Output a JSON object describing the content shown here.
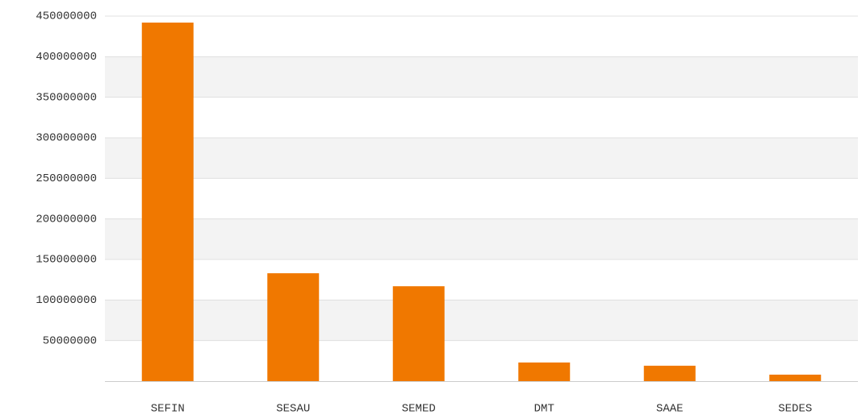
{
  "chart_data": {
    "type": "bar",
    "categories": [
      "SEFIN",
      "SESAU",
      "SEMED",
      "DMT",
      "SAAE",
      "SEDES"
    ],
    "values": [
      442000000,
      133000000,
      117000000,
      23000000,
      19000000,
      8000000
    ],
    "color": "#f07800",
    "ylim": [
      0,
      450000000
    ],
    "yticks": [
      50000000,
      100000000,
      150000000,
      200000000,
      250000000,
      300000000,
      350000000,
      400000000,
      450000000
    ],
    "grid": true
  }
}
